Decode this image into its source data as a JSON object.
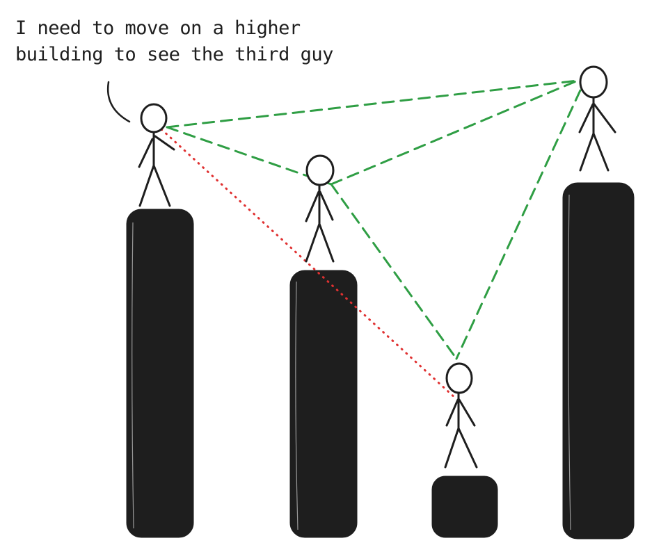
{
  "caption": {
    "line1": "I need to move on a higher",
    "line2": "building to see the third guy"
  },
  "colors": {
    "ink": "#1e1e1e",
    "building_fill": "#1e1e1e",
    "clear_sightline": "#2f9e44",
    "blocked_sightline": "#e03131",
    "background": "#ffffff"
  },
  "figures": [
    {
      "id": "speaker",
      "role": "person on left building"
    },
    {
      "id": "middle",
      "role": "person on middle building"
    },
    {
      "id": "low",
      "role": "person on low building (third guy)"
    },
    {
      "id": "right",
      "role": "person on tallest building"
    }
  ],
  "sightlines": [
    {
      "from": "speaker",
      "to": "right",
      "status": "clear"
    },
    {
      "from": "speaker",
      "to": "middle",
      "status": "clear"
    },
    {
      "from": "middle",
      "to": "right",
      "status": "clear"
    },
    {
      "from": "middle",
      "to": "low",
      "status": "clear"
    },
    {
      "from": "right",
      "to": "low",
      "status": "clear"
    },
    {
      "from": "speaker",
      "to": "low",
      "status": "blocked"
    }
  ]
}
